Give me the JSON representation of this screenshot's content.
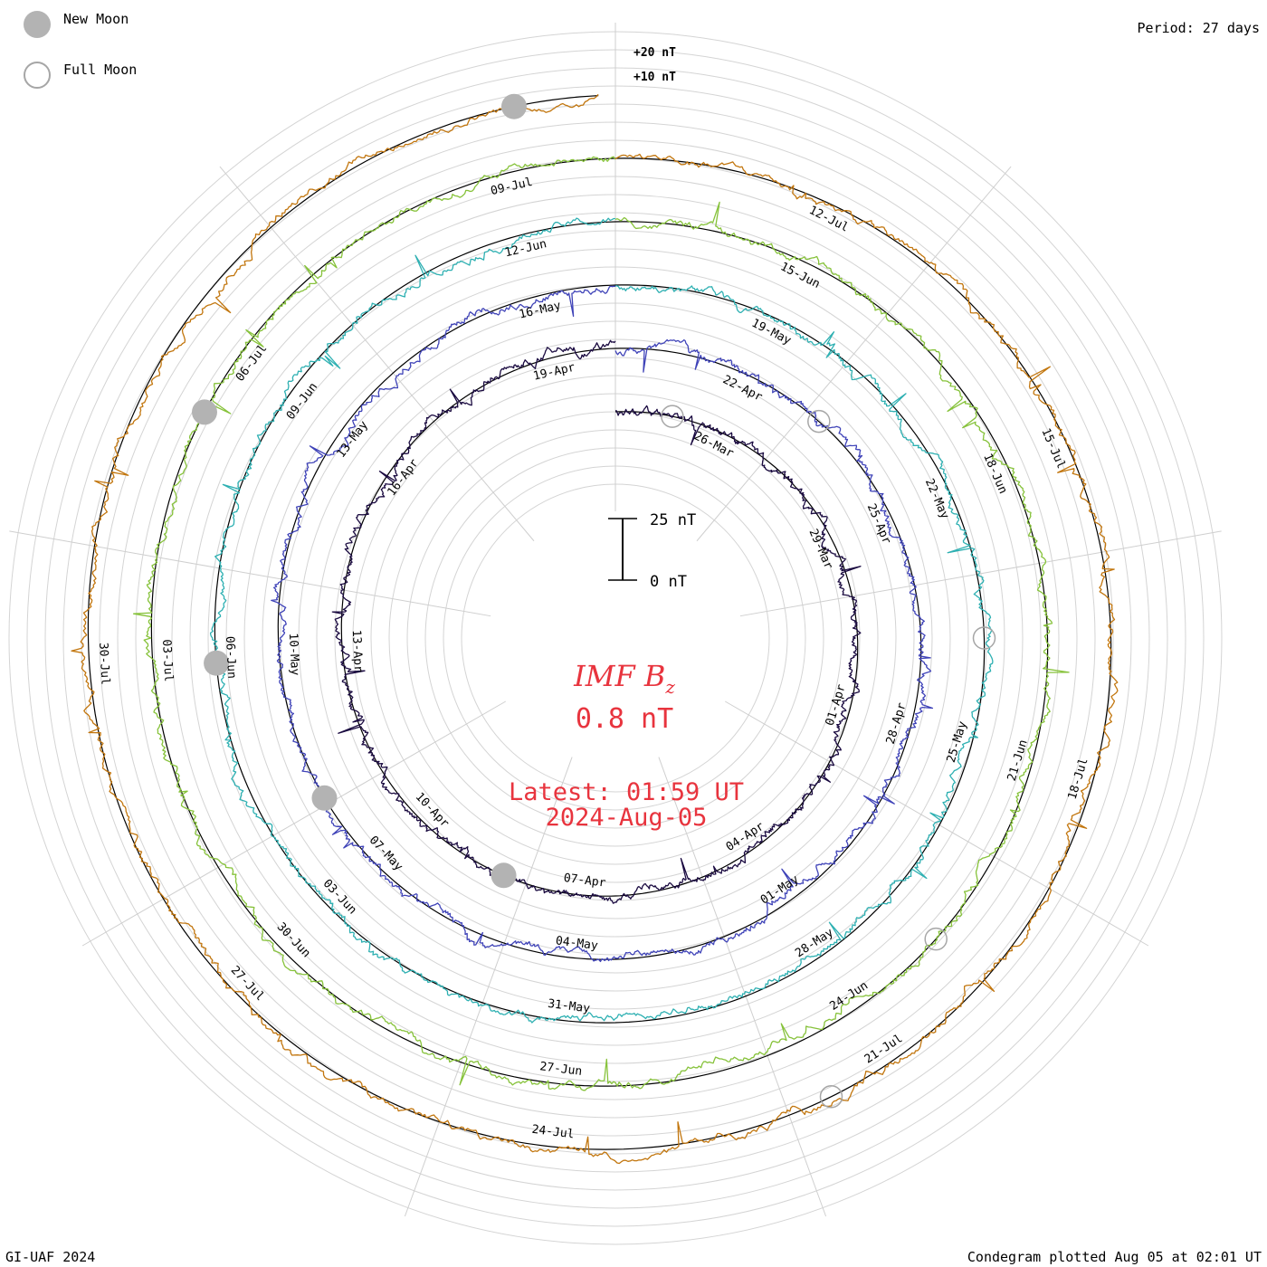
{
  "header": {
    "period": "Period: 27 days"
  },
  "legend": {
    "new_moon_label": "New Moon",
    "full_moon_label": "Full Moon",
    "new_moon_color": "#b3b3b3",
    "full_moon_edge": "#a6a6a6"
  },
  "footer": {
    "credit": "GI-UAF 2024",
    "plotted": "Condegram plotted Aug 05 at 02:01 UT"
  },
  "chart_data": {
    "type": "line",
    "subtype": "condegram-spiral",
    "title_main": "IMF B",
    "title_sub": "z",
    "current_value": "0.8 nT",
    "latest_time": "Latest: 01:59 UT",
    "latest_date": "2024-Aug-05",
    "period_days": 27,
    "scale_bar": {
      "top_label": "25 nT",
      "bottom_label": "0 nT",
      "span_nT": 25
    },
    "outer_scale_labels": [
      "+20 nT",
      "+10 nT"
    ],
    "turns": [
      {
        "index": 0,
        "start": "2024-03-24",
        "color": "#1a0a40",
        "labels": [
          [
            "26-Mar",
            0.075
          ],
          [
            "29-Mar",
            0.185
          ],
          [
            "01-Apr",
            0.297
          ],
          [
            "04-Apr",
            0.408
          ],
          [
            "07-Apr",
            0.52
          ],
          [
            "10-Apr",
            0.63
          ],
          [
            "13-Apr",
            0.742
          ],
          [
            "16-Apr",
            0.853
          ],
          [
            "19-Apr",
            0.964
          ]
        ]
      },
      {
        "index": 1,
        "start": "2024-04-20",
        "color": "#3f43b8",
        "labels": [
          [
            "22-Apr",
            0.075
          ],
          [
            "25-Apr",
            0.185
          ],
          [
            "28-Apr",
            0.297
          ],
          [
            "01-May",
            0.408
          ],
          [
            "04-May",
            0.52
          ],
          [
            "07-May",
            0.63
          ],
          [
            "10-May",
            0.742
          ],
          [
            "13-May",
            0.853
          ],
          [
            "16-May",
            0.964
          ]
        ]
      },
      {
        "index": 2,
        "start": "2024-05-17",
        "color": "#2eb0b2",
        "labels": [
          [
            "19-May",
            0.075
          ],
          [
            "22-May",
            0.185
          ],
          [
            "25-May",
            0.297
          ],
          [
            "28-May",
            0.408
          ],
          [
            "31-May",
            0.52
          ],
          [
            "03-Jun",
            0.63
          ],
          [
            "06-Jun",
            0.742
          ],
          [
            "09-Jun",
            0.853
          ],
          [
            "12-Jun",
            0.964
          ]
        ]
      },
      {
        "index": 3,
        "start": "2024-06-13",
        "color": "#86c23a",
        "labels": [
          [
            "15-Jun",
            0.075
          ],
          [
            "18-Jun",
            0.185
          ],
          [
            "21-Jun",
            0.297
          ],
          [
            "24-Jun",
            0.408
          ],
          [
            "27-Jun",
            0.52
          ],
          [
            "30-Jun",
            0.63
          ],
          [
            "03-Jul",
            0.742
          ],
          [
            "06-Jul",
            0.853
          ],
          [
            "09-Jul",
            0.964
          ]
        ]
      },
      {
        "index": 4,
        "start": "2024-07-10",
        "color": "#c2760e",
        "labels": [
          [
            "12-Jul",
            0.075
          ],
          [
            "15-Jul",
            0.185
          ],
          [
            "18-Jul",
            0.297
          ],
          [
            "21-Jul",
            0.408
          ],
          [
            "24-Jul",
            0.52
          ],
          [
            "27-Jul",
            0.63
          ],
          [
            "30-Jul",
            0.742
          ]
        ]
      }
    ],
    "new_moons": [
      {
        "date": "2024-04-08",
        "turn": 0,
        "frac": 0.57
      },
      {
        "date": "2024-05-08",
        "turn": 1,
        "frac": 0.67
      },
      {
        "date": "2024-06-06",
        "turn": 2,
        "frac": 0.74
      },
      {
        "date": "2024-07-05",
        "turn": 3,
        "frac": 0.83
      },
      {
        "date": "2024-08-04",
        "turn": 4,
        "frac": 0.97
      }
    ],
    "full_moons": [
      {
        "date": "2024-03-25",
        "turn": 0,
        "frac": 0.04
      },
      {
        "date": "2024-04-23",
        "turn": 1,
        "frac": 0.12
      },
      {
        "date": "2024-05-23",
        "turn": 2,
        "frac": 0.25
      },
      {
        "date": "2024-06-22",
        "turn": 3,
        "frac": 0.37
      },
      {
        "date": "2024-07-21",
        "turn": 4,
        "frac": 0.43
      }
    ],
    "grid": true,
    "series_note": "Bz time series per 27-day turn; radial excursion proportional to Bz (positive outward)"
  }
}
